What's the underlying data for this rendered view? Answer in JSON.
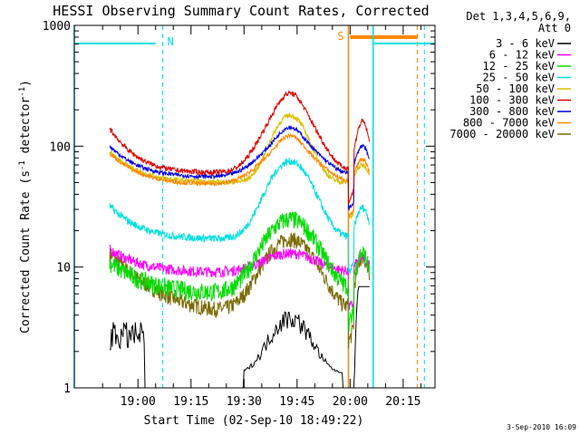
{
  "chart_data": {
    "type": "line",
    "title": "HESSI Observing Summary Count Rates, Corrected",
    "xlabel": "Start Time (02-Sep-10 18:49:22)",
    "ylabel_main": "Corrected Count Rate (s",
    "ylabel_sup1": "-1",
    "ylabel_mid": " detector",
    "ylabel_sup2": "-1",
    "ylabel_end": ")",
    "y_scale": "log",
    "ylim": [
      1,
      1000
    ],
    "xlim_minutes": [
      -18,
      84
    ],
    "x_ticks": [
      "19:00",
      "19:15",
      "19:30",
      "19:45",
      "20:00",
      "20:15"
    ],
    "y_ticks": [
      "1",
      "10",
      "100",
      "1000"
    ],
    "legend_header": [
      "Det 1,3,4,5,6,9,",
      "Att 0"
    ],
    "date_stamp": "3-Sep-2010 16:09",
    "series": [
      {
        "name": "3 - 6 keV",
        "color": "#000000"
      },
      {
        "name": "6 - 12 keV",
        "color": "#ff00ff"
      },
      {
        "name": "12 - 25 keV",
        "color": "#00dd00"
      },
      {
        "name": "25 - 50 keV",
        "color": "#00e0e0"
      },
      {
        "name": "50 - 100 keV",
        "color": "#d8c000"
      },
      {
        "name": "100 - 300 keV",
        "color": "#dd0000"
      },
      {
        "name": "300 - 800 keV",
        "color": "#0000dd"
      },
      {
        "name": "800 - 7000 keV",
        "color": "#ff8800"
      },
      {
        "name": "7000 - 20000 keV",
        "color": "#7a6a00"
      }
    ],
    "annotations": [
      {
        "label": "N",
        "time_minutes": 7,
        "color": "#00e0e0"
      },
      {
        "label": "S",
        "time_minutes": 59,
        "color": "#ff8800"
      }
    ],
    "key_values": {
      "peak_time": "19:43",
      "peak_100_300_keV": 220,
      "peak_300_800_keV": 115,
      "peak_25_50_keV": 75,
      "peak_12_25_keV": 25,
      "peak_6_12_keV": 13,
      "background_100_300_keV": 60,
      "background_25_50_keV": 17,
      "background_6_12_keV": 9
    }
  }
}
